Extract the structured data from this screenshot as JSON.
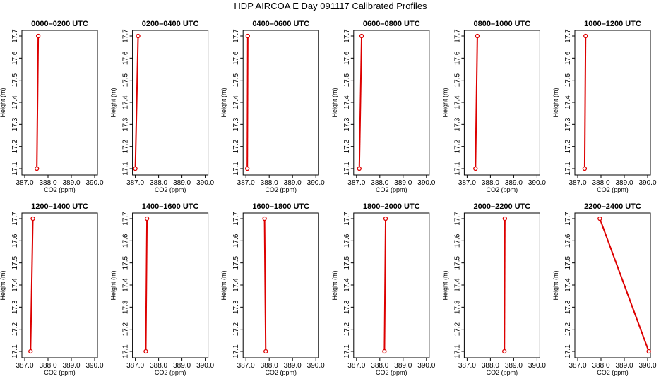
{
  "page": {
    "title": "HDP AIRCOA E  Day 091117  Calibrated Profiles"
  },
  "colors": {
    "series": "#dd0000",
    "axis": "#000000",
    "background": "#ffffff"
  },
  "chart_data": [
    {
      "type": "line",
      "title": "0000–0200 UTC",
      "xlabel": "CO2 (ppm)",
      "ylabel": "Height (m)",
      "xlim": [
        387.0,
        390.0
      ],
      "ylim": [
        17.1,
        17.7
      ],
      "grid": false,
      "xticks": [
        "387.0",
        "388.0",
        "389.0",
        "390.0"
      ],
      "yticks": [
        "17.1",
        "17.2",
        "17.3",
        "17.4",
        "17.5",
        "17.6",
        "17.7"
      ],
      "series": [
        {
          "x": [
            387.58,
            387.52
          ],
          "y": [
            17.7,
            17.1
          ]
        }
      ]
    },
    {
      "type": "line",
      "title": "0200–0400 UTC",
      "xlabel": "CO2 (ppm)",
      "ylabel": "Height (m)",
      "xlim": [
        387.0,
        390.0
      ],
      "ylim": [
        17.1,
        17.7
      ],
      "grid": false,
      "xticks": [
        "387.0",
        "388.0",
        "389.0",
        "390.0"
      ],
      "yticks": [
        "17.1",
        "17.2",
        "17.3",
        "17.4",
        "17.5",
        "17.6",
        "17.7"
      ],
      "series": [
        {
          "x": [
            387.12,
            387.0
          ],
          "y": [
            17.7,
            17.1
          ]
        }
      ]
    },
    {
      "type": "line",
      "title": "0400–0600 UTC",
      "xlabel": "CO2 (ppm)",
      "ylabel": "Height (m)",
      "xlim": [
        387.0,
        390.0
      ],
      "ylim": [
        17.1,
        17.7
      ],
      "grid": false,
      "xticks": [
        "387.0",
        "388.0",
        "389.0",
        "390.0"
      ],
      "yticks": [
        "17.1",
        "17.2",
        "17.3",
        "17.4",
        "17.5",
        "17.6",
        "17.7"
      ],
      "series": [
        {
          "x": [
            387.08,
            387.06
          ],
          "y": [
            17.7,
            17.1
          ]
        }
      ]
    },
    {
      "type": "line",
      "title": "0600–0800 UTC",
      "xlabel": "CO2 (ppm)",
      "ylabel": "Height (m)",
      "xlim": [
        387.0,
        390.0
      ],
      "ylim": [
        17.1,
        17.7
      ],
      "grid": false,
      "xticks": [
        "387.0",
        "388.0",
        "389.0",
        "390.0"
      ],
      "yticks": [
        "17.1",
        "17.2",
        "17.3",
        "17.4",
        "17.5",
        "17.6",
        "17.7"
      ],
      "series": [
        {
          "x": [
            387.22,
            387.12
          ],
          "y": [
            17.7,
            17.1
          ]
        }
      ]
    },
    {
      "type": "line",
      "title": "0800–1000 UTC",
      "xlabel": "CO2 (ppm)",
      "ylabel": "Height (m)",
      "xlim": [
        387.0,
        390.0
      ],
      "ylim": [
        17.1,
        17.7
      ],
      "grid": false,
      "xticks": [
        "387.0",
        "388.0",
        "389.0",
        "390.0"
      ],
      "yticks": [
        "17.1",
        "17.2",
        "17.3",
        "17.4",
        "17.5",
        "17.6",
        "17.7"
      ],
      "series": [
        {
          "x": [
            387.44,
            387.36
          ],
          "y": [
            17.7,
            17.1
          ]
        }
      ]
    },
    {
      "type": "line",
      "title": "1000–1200 UTC",
      "xlabel": "CO2 (ppm)",
      "ylabel": "Height (m)",
      "xlim": [
        387.0,
        390.0
      ],
      "ylim": [
        17.1,
        17.7
      ],
      "grid": false,
      "xticks": [
        "387.0",
        "388.0",
        "389.0",
        "390.0"
      ],
      "yticks": [
        "17.1",
        "17.2",
        "17.3",
        "17.4",
        "17.5",
        "17.6",
        "17.7"
      ],
      "series": [
        {
          "x": [
            387.34,
            387.3
          ],
          "y": [
            17.7,
            17.1
          ]
        }
      ]
    },
    {
      "type": "line",
      "title": "1200–1400 UTC",
      "xlabel": "CO2 (ppm)",
      "ylabel": "Height (m)",
      "xlim": [
        387.0,
        390.0
      ],
      "ylim": [
        17.1,
        17.7
      ],
      "grid": false,
      "xticks": [
        "387.0",
        "388.0",
        "389.0",
        "390.0"
      ],
      "yticks": [
        "17.1",
        "17.2",
        "17.3",
        "17.4",
        "17.5",
        "17.6",
        "17.7"
      ],
      "series": [
        {
          "x": [
            387.35,
            387.25
          ],
          "y": [
            17.7,
            17.1
          ]
        }
      ]
    },
    {
      "type": "line",
      "title": "1400–1600 UTC",
      "xlabel": "CO2 (ppm)",
      "ylabel": "Height (m)",
      "xlim": [
        387.0,
        390.0
      ],
      "ylim": [
        17.1,
        17.7
      ],
      "grid": false,
      "xticks": [
        "387.0",
        "388.0",
        "389.0",
        "390.0"
      ],
      "yticks": [
        "17.1",
        "17.2",
        "17.3",
        "17.4",
        "17.5",
        "17.6",
        "17.7"
      ],
      "series": [
        {
          "x": [
            387.5,
            387.45
          ],
          "y": [
            17.7,
            17.1
          ]
        }
      ]
    },
    {
      "type": "line",
      "title": "1600–1800 UTC",
      "xlabel": "CO2 (ppm)",
      "ylabel": "Height (m)",
      "xlim": [
        387.0,
        390.0
      ],
      "ylim": [
        17.1,
        17.7
      ],
      "grid": false,
      "xticks": [
        "387.0",
        "388.0",
        "389.0",
        "390.0"
      ],
      "yticks": [
        "17.1",
        "17.2",
        "17.3",
        "17.4",
        "17.5",
        "17.6",
        "17.7"
      ],
      "series": [
        {
          "x": [
            387.8,
            387.85
          ],
          "y": [
            17.7,
            17.1
          ]
        }
      ]
    },
    {
      "type": "line",
      "title": "1800–2000 UTC",
      "xlabel": "CO2 (ppm)",
      "ylabel": "Height (m)",
      "xlim": [
        387.0,
        390.0
      ],
      "ylim": [
        17.1,
        17.7
      ],
      "grid": false,
      "xticks": [
        "387.0",
        "388.0",
        "389.0",
        "390.0"
      ],
      "yticks": [
        "17.1",
        "17.2",
        "17.3",
        "17.4",
        "17.5",
        "17.6",
        "17.7"
      ],
      "series": [
        {
          "x": [
            388.25,
            388.2
          ],
          "y": [
            17.7,
            17.1
          ]
        }
      ]
    },
    {
      "type": "line",
      "title": "2000–2200 UTC",
      "xlabel": "CO2 (ppm)",
      "ylabel": "Height (m)",
      "xlim": [
        387.0,
        390.0
      ],
      "ylim": [
        17.1,
        17.7
      ],
      "grid": false,
      "xticks": [
        "387.0",
        "388.0",
        "389.0",
        "390.0"
      ],
      "yticks": [
        "17.1",
        "17.2",
        "17.3",
        "17.4",
        "17.5",
        "17.6",
        "17.7"
      ],
      "series": [
        {
          "x": [
            388.62,
            388.6
          ],
          "y": [
            17.7,
            17.1
          ]
        }
      ]
    },
    {
      "type": "line",
      "title": "2200–2400 UTC",
      "xlabel": "CO2 (ppm)",
      "ylabel": "Height (m)",
      "xlim": [
        387.0,
        390.0
      ],
      "ylim": [
        17.1,
        17.7
      ],
      "grid": false,
      "xticks": [
        "387.0",
        "388.0",
        "389.0",
        "390.0"
      ],
      "yticks": [
        "17.1",
        "17.2",
        "17.3",
        "17.4",
        "17.5",
        "17.6",
        "17.7"
      ],
      "series": [
        {
          "x": [
            387.95,
            390.05
          ],
          "y": [
            17.7,
            17.1
          ]
        }
      ]
    }
  ]
}
